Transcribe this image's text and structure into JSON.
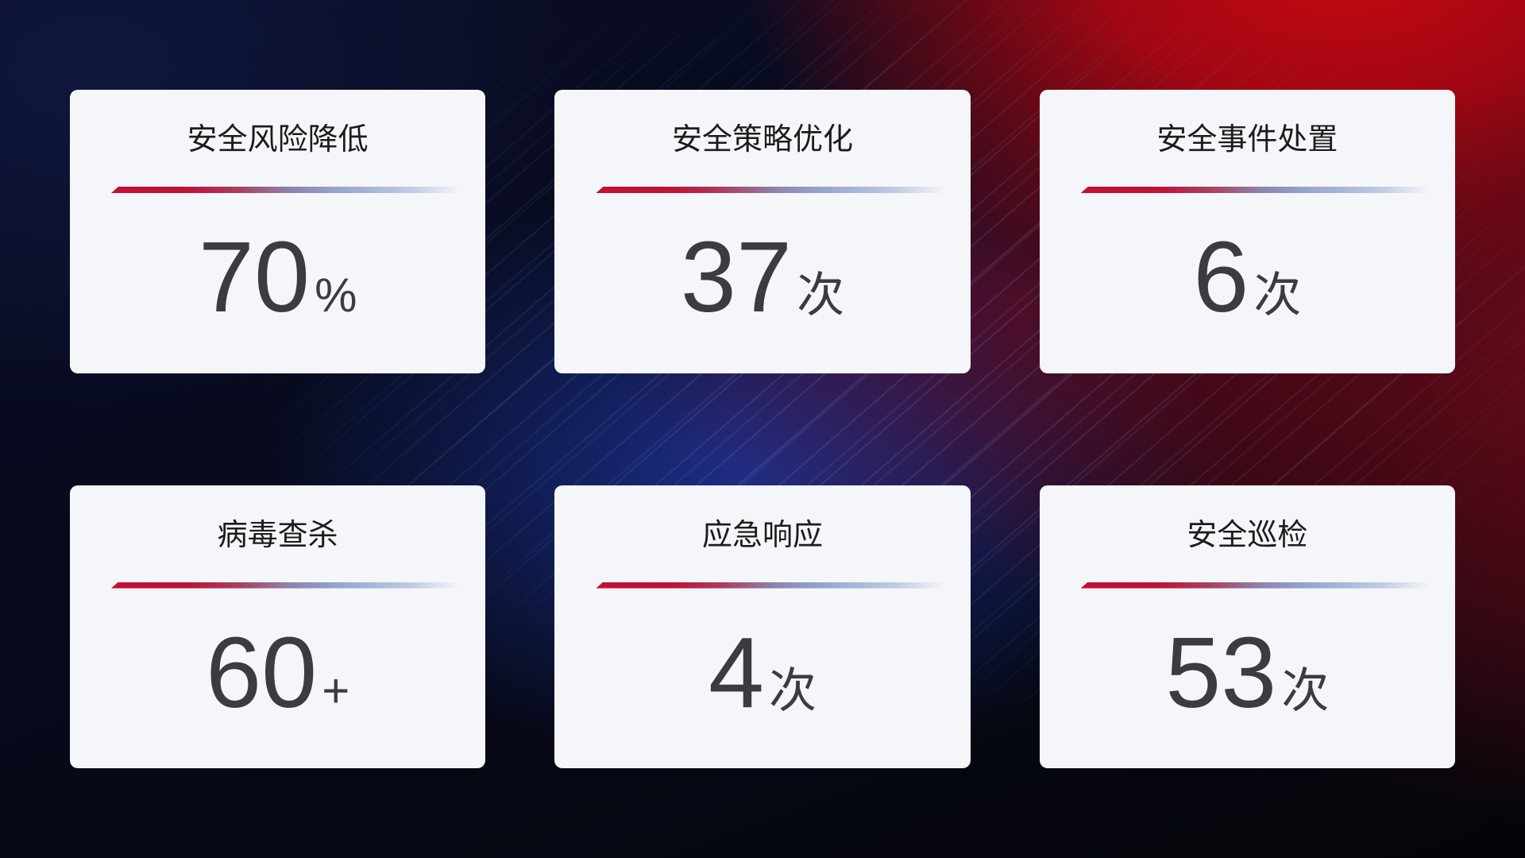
{
  "colors": {
    "card_background": "#f5f6f9",
    "title_text": "#1c1c1e",
    "value_text": "#3c3c40",
    "accent_line_start": "#c40f35",
    "accent_line_end": "#a9b8d8",
    "background_navy": "#0a0d26",
    "background_blue_glow": "#1c308e",
    "background_red_glow": "#c50812"
  },
  "cards": [
    {
      "title": "安全风险降低",
      "value": "70",
      "unit": "%"
    },
    {
      "title": "安全策略优化",
      "value": "37",
      "unit": "次"
    },
    {
      "title": "安全事件处置",
      "value": "6",
      "unit": "次"
    },
    {
      "title": "病毒查杀",
      "value": "60",
      "unit": "+"
    },
    {
      "title": "应急响应",
      "value": "4",
      "unit": "次"
    },
    {
      "title": "安全巡检",
      "value": "53",
      "unit": "次"
    }
  ]
}
